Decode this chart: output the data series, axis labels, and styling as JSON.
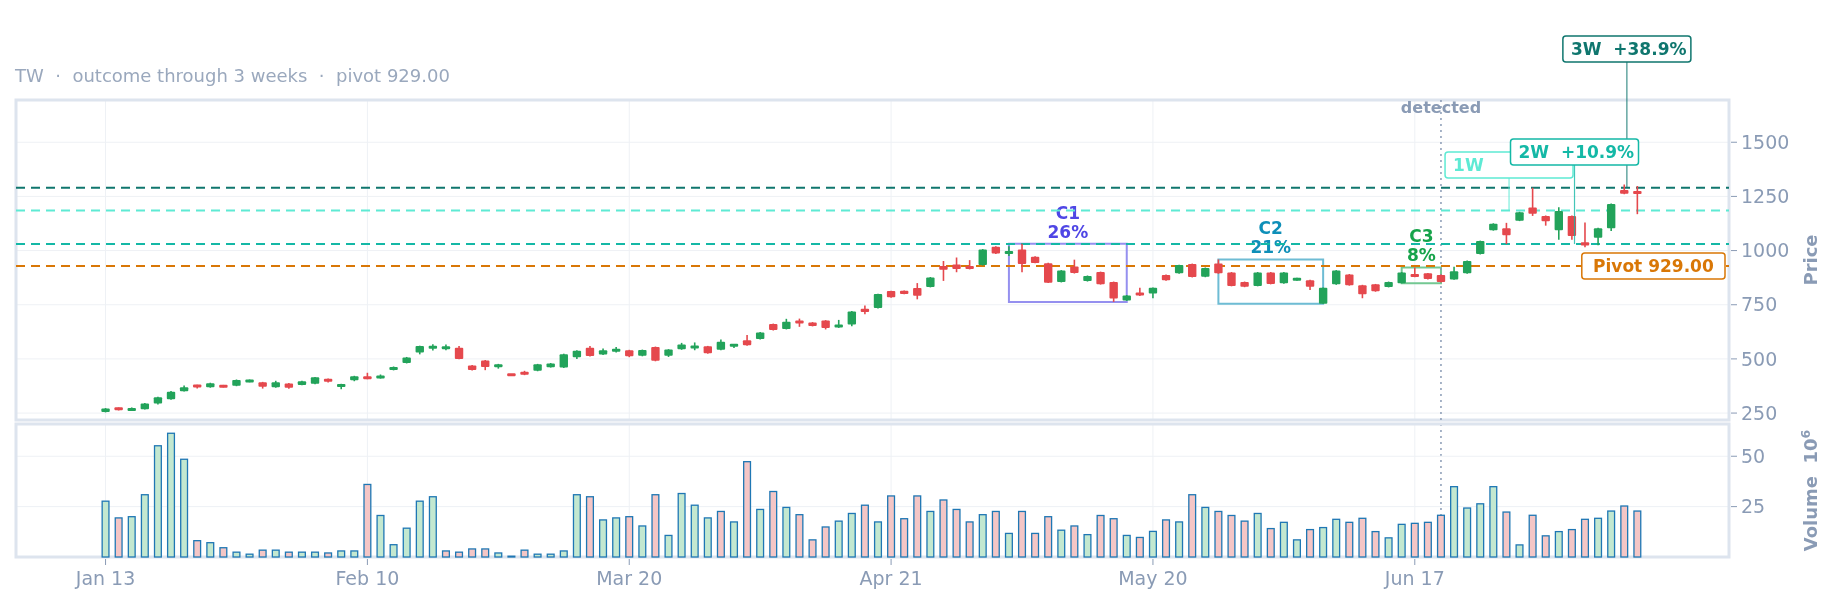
{
  "chart_data": [
    {
      "type": "candlestick",
      "subtitle": "TW  ·  outcome through 3 weeks  ·  pivot 929.00",
      "ylabel": "Price",
      "categories": [
        null,
        null,
        null,
        null,
        null,
        null,
        null,
        null,
        null,
        null,
        null,
        null,
        null,
        null,
        null,
        null,
        null,
        null,
        null,
        null,
        null,
        null,
        null,
        null,
        null,
        null,
        null,
        null,
        null,
        null,
        null,
        null,
        null,
        null,
        null,
        null,
        null,
        null,
        null,
        null,
        null,
        null,
        null,
        null,
        null,
        null,
        null,
        null,
        null,
        null,
        null,
        null,
        null,
        null,
        null,
        null,
        null,
        null,
        null,
        null,
        null,
        null,
        null,
        null,
        null,
        null,
        null,
        null,
        null,
        null,
        null,
        null,
        null,
        null,
        null,
        null,
        null,
        null,
        null,
        null,
        null,
        null,
        null,
        null,
        null,
        null,
        null,
        null,
        null,
        null,
        null,
        null,
        null,
        null,
        null,
        null,
        null,
        null,
        null,
        null,
        null,
        null,
        null,
        null,
        null,
        null,
        null,
        null,
        null,
        null,
        null,
        null,
        null,
        null,
        null,
        null,
        null,
        null
      ],
      "ohlc": [
        [
          255,
          273,
          253,
          271
        ],
        [
          275,
          276,
          262,
          264
        ],
        [
          265,
          276,
          262,
          268
        ],
        [
          268,
          296,
          266,
          294
        ],
        [
          294,
          325,
          289,
          323
        ],
        [
          314,
          352,
          312,
          348
        ],
        [
          351,
          377,
          349,
          369
        ],
        [
          380,
          381,
          363,
          369
        ],
        [
          369,
          390,
          367,
          388
        ],
        [
          378,
          380,
          368,
          369
        ],
        [
          376,
          405,
          374,
          403
        ],
        [
          394,
          405,
          392,
          403
        ],
        [
          392,
          394,
          363,
          372
        ],
        [
          369,
          399,
          367,
          392
        ],
        [
          387,
          389,
          362,
          367
        ],
        [
          380,
          399,
          378,
          397
        ],
        [
          385,
          417,
          383,
          415
        ],
        [
          408,
          410,
          391,
          396
        ],
        [
          372,
          385,
          360,
          383
        ],
        [
          401,
          422,
          397,
          420
        ],
        [
          418,
          436,
          406,
          408
        ],
        [
          411,
          428,
          409,
          422
        ],
        [
          449,
          465,
          447,
          463
        ],
        [
          481,
          509,
          479,
          507
        ],
        [
          530,
          561,
          521,
          559
        ],
        [
          551,
          568,
          539,
          556
        ],
        [
          550,
          566,
          540,
          553
        ],
        [
          552,
          560,
          498,
          500
        ],
        [
          470,
          472,
          447,
          449
        ],
        [
          493,
          495,
          448,
          463
        ],
        [
          461,
          477,
          455,
          475
        ],
        [
          428,
          430,
          424,
          426
        ],
        [
          436,
          445,
          425,
          431
        ],
        [
          445,
          477,
          443,
          475
        ],
        [
          462,
          481,
          460,
          479
        ],
        [
          460,
          524,
          458,
          522
        ],
        [
          508,
          540,
          500,
          538
        ],
        [
          551,
          560,
          511,
          513
        ],
        [
          520,
          548,
          518,
          540
        ],
        [
          535,
          555,
          529,
          545
        ],
        [
          540,
          542,
          508,
          512
        ],
        [
          514,
          543,
          512,
          541
        ],
        [
          555,
          557,
          489,
          491
        ],
        [
          514,
          545,
          509,
          543
        ],
        [
          544,
          574,
          542,
          567
        ],
        [
          548,
          576,
          540,
          562
        ],
        [
          558,
          560,
          524,
          526
        ],
        [
          542,
          590,
          540,
          579
        ],
        [
          558,
          569,
          550,
          567
        ],
        [
          586,
          610,
          561,
          563
        ],
        [
          592,
          624,
          590,
          622
        ],
        [
          661,
          663,
          631,
          633
        ],
        [
          638,
          685,
          636,
          671
        ],
        [
          677,
          686,
          648,
          664
        ],
        [
          668,
          670,
          650,
          652
        ],
        [
          677,
          679,
          636,
          643
        ],
        [
          645,
          680,
          643,
          659
        ],
        [
          659,
          721,
          651,
          719
        ],
        [
          731,
          746,
          706,
          717
        ],
        [
          735,
          801,
          733,
          799
        ],
        [
          813,
          815,
          782,
          784
        ],
        [
          814,
          816,
          798,
          800
        ],
        [
          827,
          850,
          775,
          791
        ],
        [
          832,
          878,
          830,
          876
        ],
        [
          929,
          952,
          860,
          912
        ],
        [
          936,
          968,
          900,
          915
        ],
        [
          929,
          956,
          913,
          915
        ],
        [
          933,
          1007,
          931,
          1005
        ],
        [
          1018,
          1020,
          984,
          986
        ],
        [
          986,
          1020,
          975,
          996
        ],
        [
          1005,
          1032,
          900,
          938
        ],
        [
          972,
          974,
          941,
          943
        ],
        [
          942,
          944,
          850,
          852
        ],
        [
          855,
          910,
          853,
          908
        ],
        [
          926,
          958,
          894,
          896
        ],
        [
          859,
          885,
          857,
          883
        ],
        [
          901,
          903,
          843,
          845
        ],
        [
          855,
          857,
          763,
          779
        ],
        [
          770,
          795,
          768,
          793
        ],
        [
          802,
          828,
          790,
          798
        ],
        [
          802,
          830,
          780,
          828
        ],
        [
          887,
          889,
          861,
          863
        ],
        [
          895,
          935,
          893,
          933
        ],
        [
          938,
          940,
          876,
          878
        ],
        [
          879,
          922,
          877,
          920
        ],
        [
          940,
          959,
          893,
          895
        ],
        [
          899,
          901,
          835,
          837
        ],
        [
          855,
          857,
          831,
          833
        ],
        [
          837,
          901,
          835,
          899
        ],
        [
          899,
          901,
          844,
          846
        ],
        [
          849,
          901,
          847,
          899
        ],
        [
          863,
          875,
          861,
          872
        ],
        [
          863,
          865,
          818,
          833
        ],
        [
          754,
          830,
          754,
          828
        ],
        [
          844,
          910,
          842,
          908
        ],
        [
          890,
          892,
          838,
          840
        ],
        [
          840,
          842,
          780,
          798
        ],
        [
          844,
          846,
          810,
          812
        ],
        [
          832,
          857,
          830,
          855
        ],
        [
          849,
          901,
          849,
          899
        ],
        [
          890,
          922,
          877,
          879
        ],
        [
          895,
          897,
          867,
          869
        ],
        [
          887,
          889,
          853,
          855
        ],
        [
          867,
          925,
          865,
          904
        ],
        [
          895,
          954,
          893,
          952
        ],
        [
          984,
          1046,
          982,
          1044
        ],
        [
          1094,
          1126,
          1092,
          1124
        ],
        [
          1103,
          1128,
          1030,
          1071
        ],
        [
          1138,
          1179,
          1136,
          1177
        ],
        [
          1199,
          1290,
          1160,
          1170
        ],
        [
          1160,
          1162,
          1115,
          1135
        ],
        [
          1094,
          1200,
          1050,
          1183
        ],
        [
          1160,
          1162,
          1050,
          1067
        ],
        [
          1039,
          1130,
          1015,
          1023
        ],
        [
          1059,
          1105,
          1025,
          1103
        ],
        [
          1103,
          1217,
          1090,
          1215
        ],
        [
          1280,
          1305,
          1260,
          1262
        ],
        [
          1270,
          1298,
          1168,
          1265
        ]
      ],
      "colors": [
        "#22a35a",
        "#e5484d",
        "#22a35a",
        "#22a35a",
        "#22a35a",
        "#22a35a",
        "#22a35a",
        "#e5484d",
        "#22a35a",
        "#e5484d",
        "#22a35a",
        "#22a35a",
        "#e5484d",
        "#22a35a",
        "#e5484d",
        "#22a35a",
        "#22a35a",
        "#e5484d",
        "#22a35a",
        "#22a35a",
        "#e5484d",
        "#22a35a",
        "#22a35a",
        "#22a35a",
        "#22a35a",
        "#22a35a",
        "#22a35a",
        "#e5484d",
        "#e5484d",
        "#e5484d",
        "#22a35a",
        "#e5484d",
        "#e5484d",
        "#22a35a",
        "#22a35a",
        "#22a35a",
        "#22a35a",
        "#e5484d",
        "#22a35a",
        "#22a35a",
        "#e5484d",
        "#22a35a",
        "#e5484d",
        "#22a35a",
        "#22a35a",
        "#22a35a",
        "#e5484d",
        "#22a35a",
        "#22a35a",
        "#e5484d",
        "#22a35a",
        "#e5484d",
        "#22a35a",
        "#e5484d",
        "#e5484d",
        "#e5484d",
        "#22a35a",
        "#22a35a",
        "#e5484d",
        "#22a35a",
        "#e5484d",
        "#e5484d",
        "#e5484d",
        "#22a35a",
        "#e5484d",
        "#e5484d",
        "#e5484d",
        "#22a35a",
        "#e5484d",
        "#22a35a",
        "#e5484d",
        "#e5484d",
        "#e5484d",
        "#22a35a",
        "#e5484d",
        "#22a35a",
        "#e5484d",
        "#e5484d",
        "#22a35a",
        "#e5484d",
        "#22a35a",
        "#e5484d",
        "#22a35a",
        "#e5484d",
        "#22a35a",
        "#e5484d",
        "#e5484d",
        "#e5484d",
        "#22a35a",
        "#e5484d",
        "#22a35a",
        "#22a35a",
        "#e5484d",
        "#22a35a",
        "#22a35a",
        "#e5484d",
        "#e5484d",
        "#e5484d",
        "#22a35a",
        "#22a35a",
        "#e5484d",
        "#e5484d",
        "#e5484d",
        "#22a35a",
        "#22a35a",
        "#22a35a",
        "#22a35a",
        "#e5484d",
        "#22a35a",
        "#e5484d",
        "#e5484d",
        "#22a35a",
        "#e5484d",
        "#e5484d",
        "#22a35a",
        "#22a35a",
        "#e5484d",
        "#e5484d"
      ],
      "ylim": [
        218,
        1695
      ],
      "yticks": [
        250,
        500,
        750,
        1000,
        1250,
        1500
      ],
      "grid": true,
      "tick_labels": "y",
      "ref_lines": [
        {
          "axis": "y",
          "value": 929,
          "label": "Pivot 929.00",
          "color": "#d97706",
          "line_style": "dashed"
        },
        {
          "axis": "y",
          "value": 1185,
          "label": "1W",
          "color": "#5eead4",
          "line_style": "dashed"
        },
        {
          "axis": "y",
          "value": 1030,
          "label": "2W  +10.9%",
          "color": "#14b8a6",
          "line_style": "dashed"
        },
        {
          "axis": "y",
          "value": 1290,
          "label": "3W  +38.9%",
          "color": "#0f766e",
          "line_style": "dashed"
        }
      ],
      "annotations": [
        "C1 26%",
        "C2 21%",
        "C3 8%",
        "detected"
      ]
    },
    {
      "type": "bar",
      "ylabel": "Volume  10$^{6}$",
      "categories": [
        "Jan 13",
        null,
        null,
        null,
        null,
        null,
        null,
        null,
        null,
        null,
        null,
        null,
        null,
        null,
        null,
        null,
        null,
        null,
        null,
        null,
        "Feb 10",
        null,
        null,
        null,
        null,
        null,
        null,
        null,
        null,
        null,
        null,
        null,
        null,
        null,
        null,
        null,
        null,
        null,
        null,
        null,
        "Mar 20",
        null,
        null,
        null,
        null,
        null,
        null,
        null,
        null,
        null,
        null,
        null,
        null,
        null,
        null,
        null,
        null,
        null,
        null,
        null,
        "Apr 21",
        null,
        null,
        null,
        null,
        null,
        null,
        null,
        null,
        null,
        null,
        null,
        null,
        null,
        null,
        null,
        null,
        null,
        null,
        null,
        "May 20",
        null,
        null,
        null,
        null,
        null,
        null,
        null,
        null,
        null,
        null,
        null,
        null,
        null,
        null,
        null,
        null,
        null,
        null,
        null,
        "Jun 17",
        null,
        null,
        null,
        null,
        null,
        null,
        null,
        null,
        null,
        null,
        null,
        null,
        null,
        null,
        null,
        null,
        null
      ],
      "values": [
        27.7,
        19.4,
        20,
        30.9,
        55.2,
        61.4,
        48.5,
        8.1,
        7.1,
        4.6,
        2.4,
        1.4,
        3.4,
        3.4,
        2.4,
        2.4,
        2.4,
        2.0,
        3.0,
        3.0,
        36.0,
        20.6,
        6.1,
        14.3,
        27.7,
        29.9,
        3.0,
        2.4,
        4.0,
        4.0,
        2.0,
        0.4,
        3.4,
        1.4,
        1.4,
        3.0,
        30.9,
        29.9,
        18.4,
        19.4,
        20,
        15.4,
        30.9,
        10.7,
        31.5,
        25.7,
        19.4,
        22.6,
        17.4,
        47.3,
        23.6,
        32.5,
        24.6,
        21.0,
        8.5,
        14.9,
        17.8,
        21.6,
        25.7,
        17.4,
        30.3,
        19.0,
        30.3,
        22.6,
        28.3,
        23.6,
        17.4,
        21.0,
        22.6,
        11.7,
        22.6,
        11.7,
        20.0,
        13.3,
        15.4,
        11.1,
        20.6,
        19.0,
        10.7,
        9.7,
        12.7,
        18.4,
        17.4,
        30.9,
        24.6,
        22.6,
        20.6,
        17.8,
        21.6,
        14.1,
        17.2,
        8.5,
        13.6,
        14.6,
        18.7,
        17.2,
        19.2,
        12.6,
        9.5,
        16.2,
        16.7,
        17.2,
        20.7,
        34.9,
        24.3,
        26.4,
        34.9,
        22.3,
        6.0,
        20.7,
        10.5,
        12.6,
        13.6,
        18.7,
        19.2,
        22.8,
        25.3,
        22.8
      ],
      "colors": [
        "#c3e8d0",
        "#f4c6c6",
        "#c3e8d0",
        "#c3e8d0",
        "#c3e8d0",
        "#c3e8d0",
        "#c3e8d0",
        "#f4c6c6",
        "#c3e8d0",
        "#f4c6c6",
        "#c3e8d0",
        "#c3e8d0",
        "#f4c6c6",
        "#c3e8d0",
        "#f4c6c6",
        "#c3e8d0",
        "#c3e8d0",
        "#f4c6c6",
        "#c3e8d0",
        "#c3e8d0",
        "#f4c6c6",
        "#c3e8d0",
        "#c3e8d0",
        "#c3e8d0",
        "#c3e8d0",
        "#c3e8d0",
        "#f4c6c6",
        "#f4c6c6",
        "#f4c6c6",
        "#f4c6c6",
        "#c3e8d0",
        "#f4c6c6",
        "#f4c6c6",
        "#c3e8d0",
        "#c3e8d0",
        "#c3e8d0",
        "#c3e8d0",
        "#f4c6c6",
        "#c3e8d0",
        "#c3e8d0",
        "#f4c6c6",
        "#c3e8d0",
        "#f4c6c6",
        "#c3e8d0",
        "#c3e8d0",
        "#c3e8d0",
        "#c3e8d0",
        "#f4c6c6",
        "#c3e8d0",
        "#f4c6c6",
        "#c3e8d0",
        "#f4c6c6",
        "#c3e8d0",
        "#f4c6c6",
        "#f4c6c6",
        "#f4c6c6",
        "#c3e8d0",
        "#c3e8d0",
        "#f4c6c6",
        "#c3e8d0",
        "#f4c6c6",
        "#f4c6c6",
        "#f4c6c6",
        "#c3e8d0",
        "#f4c6c6",
        "#f4c6c6",
        "#f4c6c6",
        "#c3e8d0",
        "#f4c6c6",
        "#c3e8d0",
        "#f4c6c6",
        "#f4c6c6",
        "#f4c6c6",
        "#c3e8d0",
        "#f4c6c6",
        "#c3e8d0",
        "#f4c6c6",
        "#f4c6c6",
        "#c3e8d0",
        "#f4c6c6",
        "#c3e8d0",
        "#f4c6c6",
        "#c3e8d0",
        "#f4c6c6",
        "#c3e8d0",
        "#f4c6c6",
        "#f4c6c6",
        "#f4c6c6",
        "#c3e8d0",
        "#f4c6c6",
        "#c3e8d0",
        "#c3e8d0",
        "#f4c6c6",
        "#c3e8d0",
        "#c3e8d0",
        "#f4c6c6",
        "#f4c6c6",
        "#f4c6c6",
        "#c3e8d0",
        "#c3e8d0",
        "#f4c6c6",
        "#f4c6c6",
        "#f4c6c6",
        "#c3e8d0",
        "#c3e8d0",
        "#c3e8d0",
        "#c3e8d0",
        "#f4c6c6",
        "#c3e8d0",
        "#f4c6c6",
        "#f4c6c6",
        "#c3e8d0",
        "#f4c6c6",
        "#f4c6c6",
        "#c3e8d0",
        "#c3e8d0",
        "#f4c6c6",
        "#f4c6c6"
      ],
      "ylim": [
        0,
        66
      ],
      "yticks": [
        25,
        50
      ],
      "grid": true
    }
  ]
}
